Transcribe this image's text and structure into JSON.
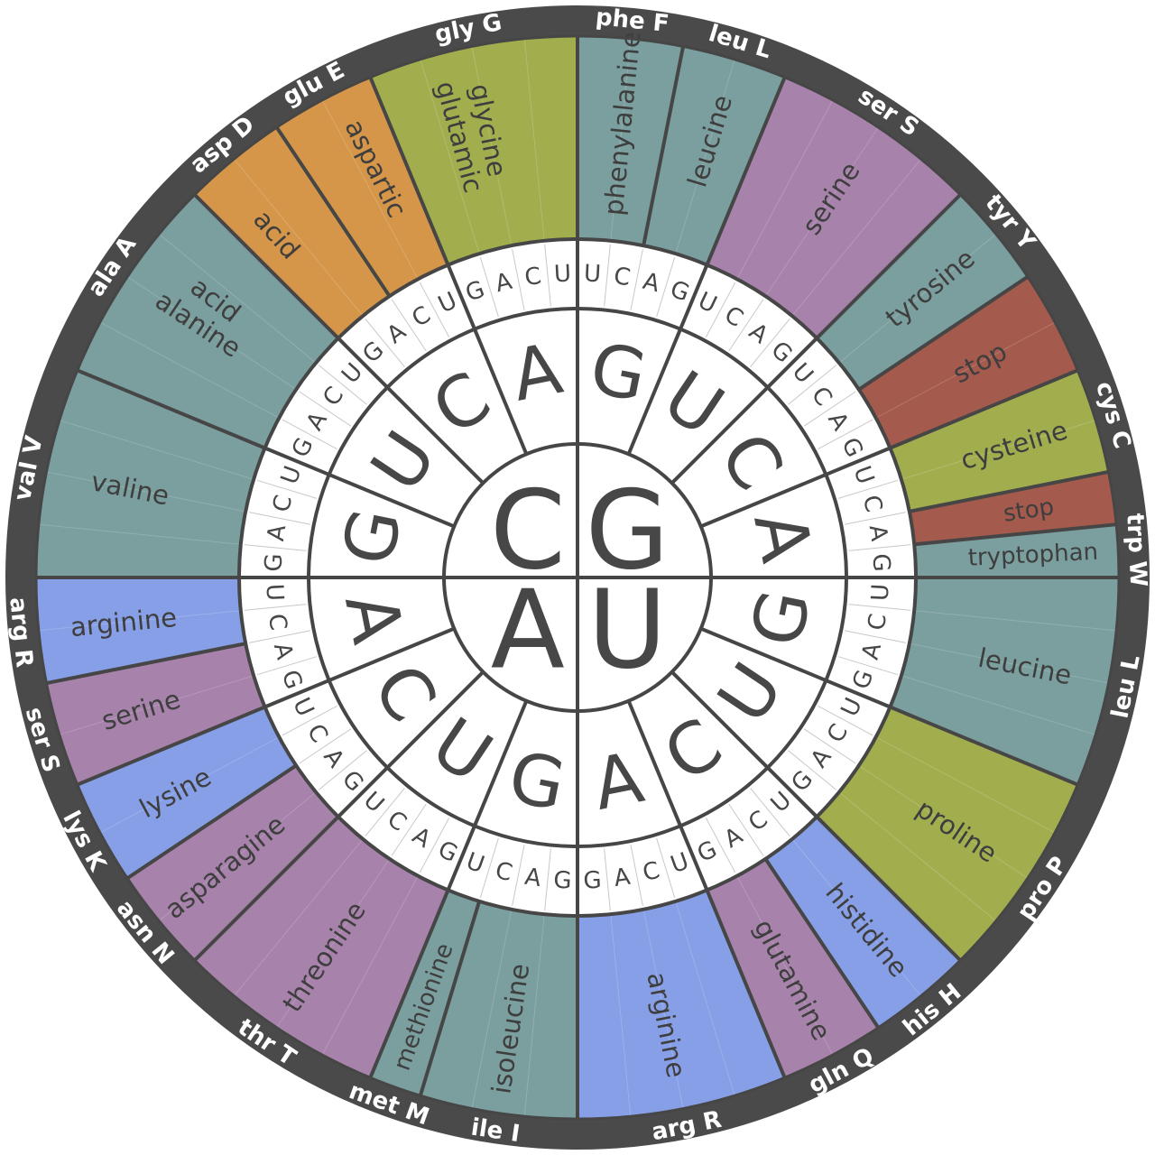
{
  "colors": {
    "rim": "#4a4a4a",
    "divider": "#464646",
    "hub": "#ffffff",
    "base_text": "#474747",
    "aa_text": "#3e3e3e",
    "rim_text": "#ffffff",
    "class_colors": {
      "nonpolar": "#7b9e9e",
      "polar": "#a782ab",
      "acidic": "#d59649",
      "basic": "#879fe6",
      "special": "#a2ad4e",
      "stop": "#a45a4c"
    }
  },
  "first_bases": [
    "G",
    "U",
    "A",
    "C"
  ],
  "second_bases": [
    "G",
    "U",
    "C",
    "A",
    "G",
    "U",
    "C",
    "A",
    "G",
    "U",
    "C",
    "A",
    "G",
    "U",
    "C",
    "A"
  ],
  "third_bases": [
    "U",
    "C",
    "A",
    "G",
    "U",
    "C",
    "A",
    "G",
    "U",
    "C",
    "A",
    "G",
    "U",
    "C",
    "A",
    "G",
    "U",
    "C",
    "A",
    "G",
    "U",
    "C",
    "A",
    "G",
    "U",
    "C",
    "A",
    "G",
    "U",
    "C",
    "A",
    "G",
    "G",
    "A",
    "C",
    "U",
    "G",
    "A",
    "C",
    "U",
    "G",
    "A",
    "C",
    "U",
    "G",
    "A",
    "C",
    "U",
    "G",
    "A",
    "C",
    "U",
    "G",
    "A",
    "C",
    "U",
    "G",
    "A",
    "C",
    "U",
    "G",
    "A",
    "C",
    "U"
  ],
  "amino_acids": [
    {
      "name": "phenylalanine",
      "abbr": "phe F",
      "codons": 2,
      "class": "nonpolar"
    },
    {
      "name": "leucine",
      "abbr": "leu L",
      "codons": 2,
      "class": "nonpolar"
    },
    {
      "name": "serine",
      "abbr": "ser S",
      "codons": 4,
      "class": "polar"
    },
    {
      "name": "tyrosine",
      "abbr": "tyr Y",
      "codons": 2,
      "class": "nonpolar"
    },
    {
      "name": "stop",
      "abbr": "",
      "codons": 2,
      "class": "stop"
    },
    {
      "name": "cysteine",
      "abbr": "cys C",
      "codons": 2,
      "class": "special"
    },
    {
      "name": "stop",
      "abbr": "",
      "codons": 1,
      "class": "stop"
    },
    {
      "name": "tryptophan",
      "abbr": "trp W",
      "codons": 1,
      "class": "nonpolar"
    },
    {
      "name": "leucine",
      "abbr": "leu L",
      "codons": 4,
      "class": "nonpolar"
    },
    {
      "name": "proline",
      "abbr": "pro P",
      "codons": 4,
      "class": "special"
    },
    {
      "name": "histidine",
      "abbr": "his H",
      "codons": 2,
      "class": "basic"
    },
    {
      "name": "glutamine",
      "abbr": "gln Q",
      "codons": 2,
      "class": "polar"
    },
    {
      "name": "arginine",
      "abbr": "arg R",
      "codons": 4,
      "class": "basic"
    },
    {
      "name": "isoleucine",
      "abbr": "ile I",
      "codons": 3,
      "class": "nonpolar"
    },
    {
      "name": "methionine",
      "abbr": "met M",
      "codons": 1,
      "class": "nonpolar"
    },
    {
      "name": "threonine",
      "abbr": "thr T",
      "codons": 4,
      "class": "polar"
    },
    {
      "name": "asparagine",
      "abbr": "asn N",
      "codons": 2,
      "class": "polar"
    },
    {
      "name": "lysine",
      "abbr": "lys K",
      "codons": 2,
      "class": "basic"
    },
    {
      "name": "serine",
      "abbr": "ser S",
      "codons": 2,
      "class": "polar"
    },
    {
      "name": "arginine",
      "abbr": "arg R",
      "codons": 2,
      "class": "basic"
    },
    {
      "name": "valine",
      "abbr": "val V",
      "codons": 4,
      "class": "nonpolar"
    },
    {
      "name": "alanine",
      "abbr": "ala A",
      "codons": 4,
      "class": "nonpolar"
    },
    {
      "name": "aspartic acid",
      "abbr": "asp D",
      "codons": 2,
      "class": "acidic"
    },
    {
      "name": "glutamic acid",
      "abbr": "glu E",
      "codons": 2,
      "class": "acidic"
    },
    {
      "name": "glycine",
      "abbr": "gly G",
      "codons": 4,
      "class": "special"
    }
  ]
}
